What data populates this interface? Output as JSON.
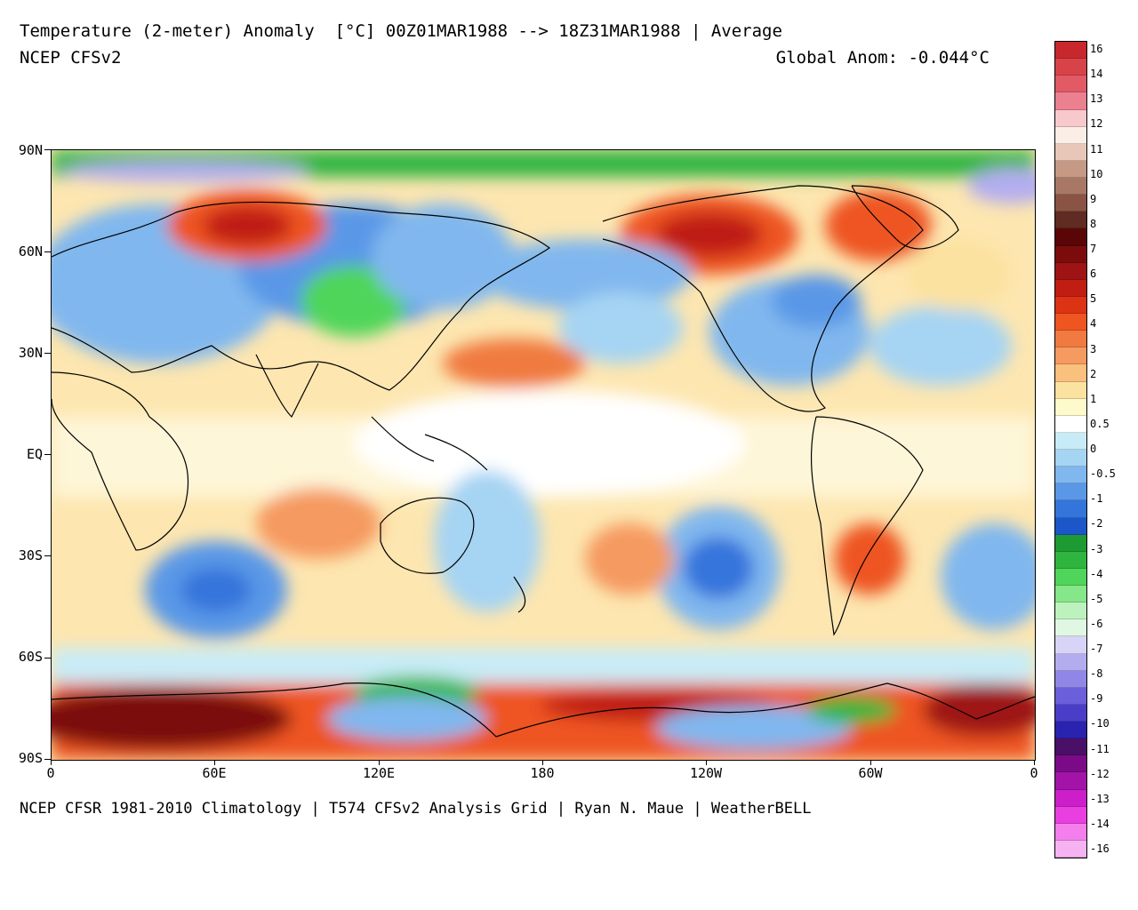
{
  "header": {
    "title": "Temperature (2-meter) Anomaly  [°C] 00Z01MAR1988 --> 18Z31MAR1988 | Average",
    "model": "NCEP CFSv2",
    "global_anom": "Global Anom: -0.044°C"
  },
  "footer": {
    "text": "NCEP CFSR 1981-2010 Climatology | T574 CFSv2 Analysis Grid | Ryan N. Maue | WeatherBELL"
  },
  "axes": {
    "lat_labels": [
      "90N",
      "60N",
      "30N",
      "EQ",
      "30S",
      "60S",
      "90S"
    ],
    "lon_labels": [
      "0",
      "60E",
      "120E",
      "180",
      "120W",
      "60W",
      "0"
    ]
  },
  "colorbar": {
    "labels": [
      "16",
      "14",
      "13",
      "12",
      "11",
      "10",
      "9",
      "8",
      "7",
      "6",
      "5",
      "4",
      "3",
      "2",
      "1",
      "0.5",
      "0",
      "-0.5",
      "-1",
      "-2",
      "-3",
      "-4",
      "-5",
      "-6",
      "-7",
      "-8",
      "-9",
      "-10",
      "-11",
      "-12",
      "-13",
      "-14",
      "-16"
    ],
    "colors": [
      "#c8282d",
      "#d8434a",
      "#e15a64",
      "#ea8090",
      "#f7c8cc",
      "#fbeee6",
      "#e9c7b8",
      "#c69984",
      "#a97766",
      "#8a5344",
      "#5f2b22",
      "#5a0606",
      "#7c0c0c",
      "#9e1414",
      "#c01e12",
      "#dc3314",
      "#ee5520",
      "#f07a40",
      "#f59a60",
      "#f9c07e",
      "#fce2a0",
      "#fefacc",
      "#ffffff",
      "#c8ecf7",
      "#a6d4f3",
      "#80b7ee",
      "#5a98e7",
      "#3475dc",
      "#1b57c8",
      "#1e9a33",
      "#2fb53f",
      "#4fd55a",
      "#86e68a",
      "#bdf2bf",
      "#e0f7e3",
      "#d7d4f7",
      "#b3adf0",
      "#8f86e8",
      "#6b5fdc",
      "#4a3ec9",
      "#2a23b0",
      "#4a0f66",
      "#7b0a86",
      "#a313a8",
      "#cc1fc9",
      "#ea3fe0",
      "#f47fec",
      "#f6b3f2"
    ]
  },
  "map": {
    "bounds": {
      "lon_min": 0,
      "lon_max": 360,
      "lat_min": -90,
      "lat_max": 90
    }
  }
}
